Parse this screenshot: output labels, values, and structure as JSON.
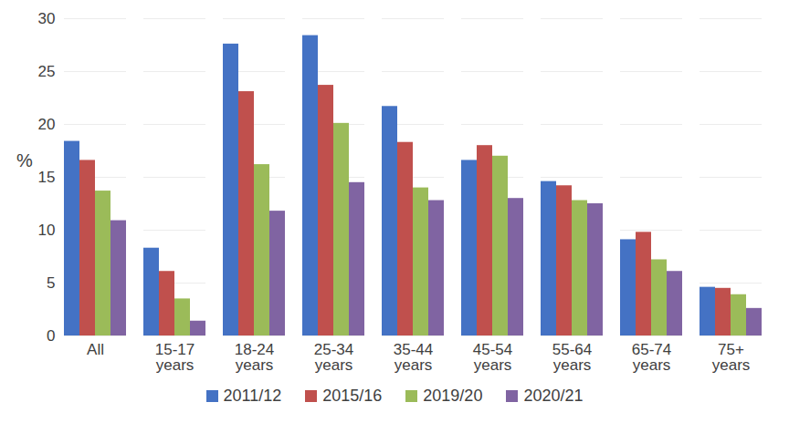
{
  "chart_data": {
    "type": "bar",
    "y_label": "%",
    "categories": [
      "All",
      "15-17 years",
      "18-24 years",
      "25-34 years",
      "35-44 years",
      "45-54 years",
      "55-64 years",
      "65-74 years",
      "75+ years"
    ],
    "series": [
      {
        "name": "2011/12",
        "color": "#4472c4",
        "values": [
          18.4,
          8.3,
          27.6,
          28.4,
          21.7,
          16.6,
          14.6,
          9.1,
          4.6
        ]
      },
      {
        "name": "2015/16",
        "color": "#c0504d",
        "values": [
          16.6,
          6.1,
          23.1,
          23.7,
          18.3,
          18.0,
          14.2,
          9.8,
          4.5
        ]
      },
      {
        "name": "2019/20",
        "color": "#9bbb59",
        "values": [
          13.7,
          3.5,
          16.2,
          20.1,
          14.0,
          17.0,
          12.8,
          7.2,
          3.9
        ]
      },
      {
        "name": "2020/21",
        "color": "#8064a2",
        "values": [
          10.9,
          1.4,
          11.8,
          14.5,
          12.8,
          13.0,
          12.5,
          6.1,
          2.6
        ]
      }
    ],
    "ylim": [
      0,
      30
    ],
    "yticks": [
      0,
      5,
      10,
      15,
      20,
      25,
      30
    ],
    "grid": true,
    "legend": "bottom"
  }
}
